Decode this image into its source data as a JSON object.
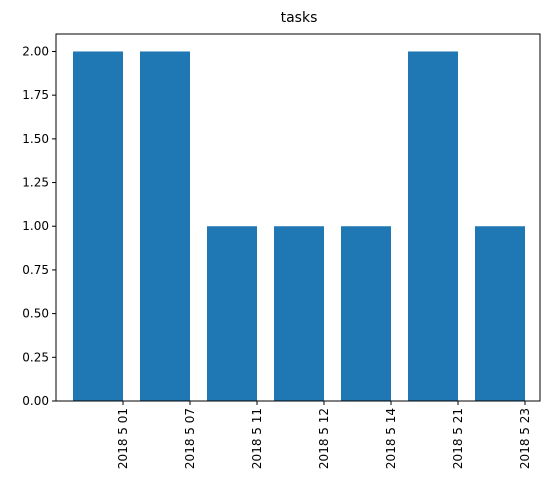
{
  "chart_data": {
    "type": "bar",
    "title": "tasks",
    "xlabel": "",
    "ylabel": "",
    "categories": [
      "2018 5 01",
      "2018 5 07",
      "2018 5 11",
      "2018 5 12",
      "2018 5 14",
      "2018 5 21",
      "2018 5 23"
    ],
    "values": [
      2,
      2,
      1,
      1,
      1,
      2,
      1
    ],
    "ylim": [
      0,
      2.1
    ],
    "yticks": [
      "0.00",
      "0.25",
      "0.50",
      "0.75",
      "1.00",
      "1.25",
      "1.50",
      "1.75",
      "2.00"
    ],
    "grid": false,
    "bar_color": "#1f77b4"
  }
}
